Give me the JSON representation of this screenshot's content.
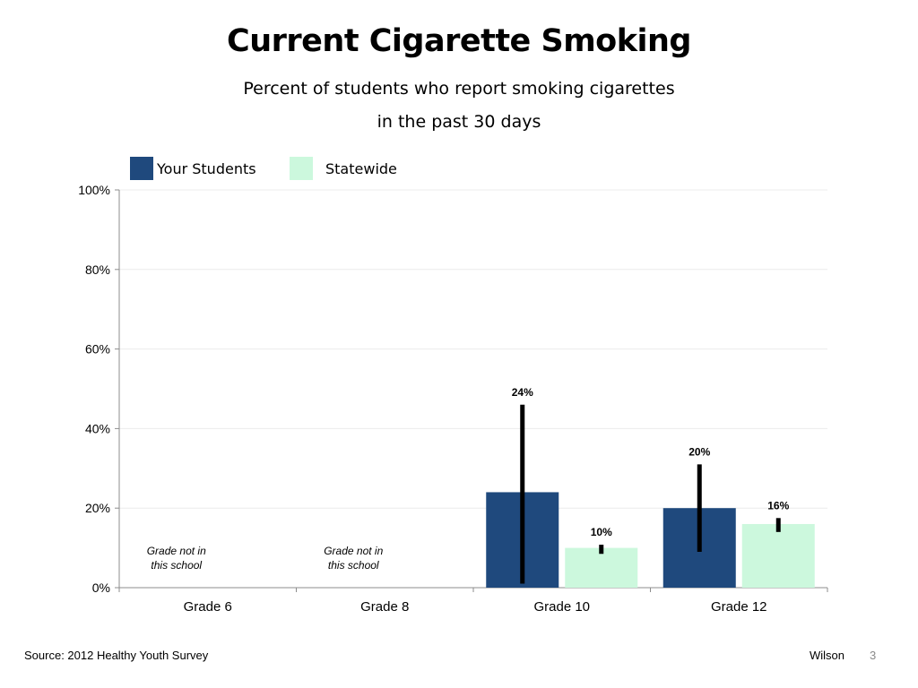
{
  "chart_data": {
    "type": "bar",
    "title": "Current Cigarette Smoking",
    "subtitle": [
      "Percent of students who report smoking cigarettes",
      "in the past 30 days"
    ],
    "categories": [
      "Grade 6",
      "Grade 8",
      "Grade 10",
      "Grade 12"
    ],
    "series": [
      {
        "name": "Your Students",
        "color": "#1f497d",
        "values": [
          null,
          null,
          24,
          20
        ],
        "labels": [
          "",
          "",
          "24%",
          "20%"
        ],
        "error_low": [
          null,
          null,
          1,
          9
        ],
        "error_high": [
          null,
          null,
          46,
          31
        ]
      },
      {
        "name": "Statewide",
        "color": "#ccf8dd",
        "values": [
          null,
          null,
          10,
          16
        ],
        "labels": [
          "",
          "",
          "10%",
          "16%"
        ],
        "error_low": [
          null,
          null,
          8.5,
          14
        ],
        "error_high": [
          null,
          null,
          10.8,
          17.5
        ]
      }
    ],
    "ylim": [
      0,
      100
    ],
    "yticks": [
      0,
      20,
      40,
      60,
      80,
      100
    ],
    "ytick_labels": [
      "0%",
      "20%",
      "40%",
      "60%",
      "80%",
      "100%"
    ],
    "xlabel": "",
    "ylabel": "",
    "notes": [
      {
        "category": "Grade 6",
        "text": [
          "Grade not in",
          "this school"
        ]
      },
      {
        "category": "Grade 8",
        "text": [
          "Grade not in",
          "this school"
        ]
      }
    ],
    "grid": true,
    "legend": "top-left",
    "error_bars": true
  },
  "footer": {
    "source": "Source: 2012 Healthy Youth Survey",
    "author": "Wilson",
    "page": "3"
  }
}
